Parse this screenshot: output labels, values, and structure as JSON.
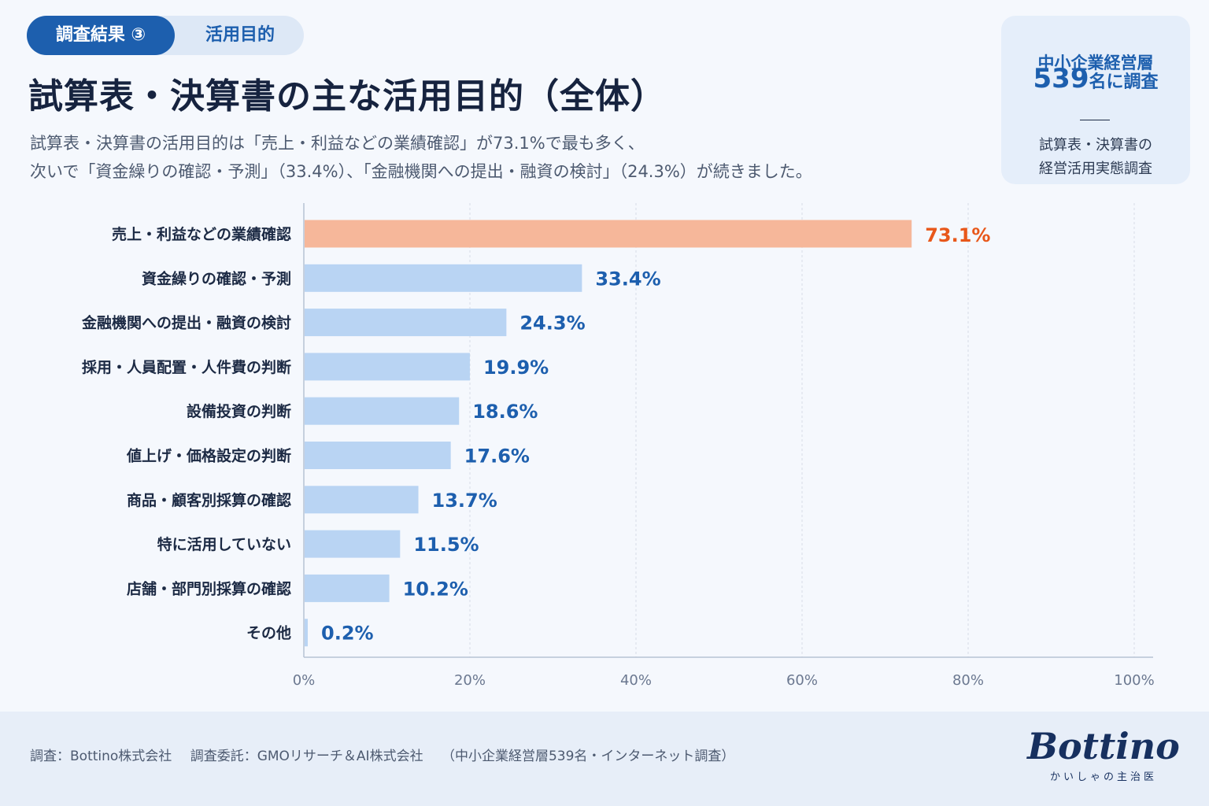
{
  "header": {
    "tab_active": "調査結果 ③",
    "tab_inactive": "活用目的",
    "title": "試算表・決算書の主な活用目的（全体）",
    "subtitle_line1": "試算表・決算書の活用目的は「売上・利益などの業績確認」が73.1%で最も多く、",
    "subtitle_line2": "次いで「資金繰りの確認・予測」（33.4%）、「金融機関への提出・融資の検討」（24.3%）が続きました。"
  },
  "survey_box": {
    "line1": "中小企業経営層",
    "count": "539",
    "count_suffix": "名に調査",
    "line3a": "試算表・決算書の",
    "line3b": "経営活用実態調査"
  },
  "chart_data": {
    "type": "bar",
    "orientation": "horizontal",
    "categories": [
      "売上・利益などの業績確認",
      "資金繰りの確認・予測",
      "金融機関への提出・融資の検討",
      "採用・人員配置・人件費の判断",
      "設備投資の判断",
      "値上げ・価格設定の判断",
      "商品・顧客別採算の確認",
      "特に活用していない",
      "店舗・部門別採算の確認",
      "その他"
    ],
    "values": [
      73.1,
      33.4,
      24.3,
      19.9,
      18.6,
      17.6,
      13.7,
      11.5,
      10.2,
      0.2
    ],
    "value_labels": [
      "73.1%",
      "33.4%",
      "24.3%",
      "19.9%",
      "18.6%",
      "17.6%",
      "13.7%",
      "11.5%",
      "10.2%",
      "0.2%"
    ],
    "xlim": [
      0,
      100
    ],
    "xticks": [
      0,
      20,
      40,
      60,
      80,
      100
    ],
    "xtick_labels": [
      "0%",
      "20%",
      "40%",
      "60%",
      "80%",
      "100%"
    ],
    "grid": "vertical dashed",
    "colors": {
      "highlight_bar": "#f6b79a",
      "highlight_text": "#e8571a",
      "bar": "#b9d4f3",
      "value_text": "#1d5fae"
    }
  },
  "footer": {
    "survey": "調査：Bottino株式会社",
    "commission": "調査委託：GMOリサーチ＆AI株式会社",
    "note": "（中小企業経営層539名・インターネット調査）",
    "brand_name": "Bottino",
    "brand_tagline": "かいしゃの主治医"
  }
}
